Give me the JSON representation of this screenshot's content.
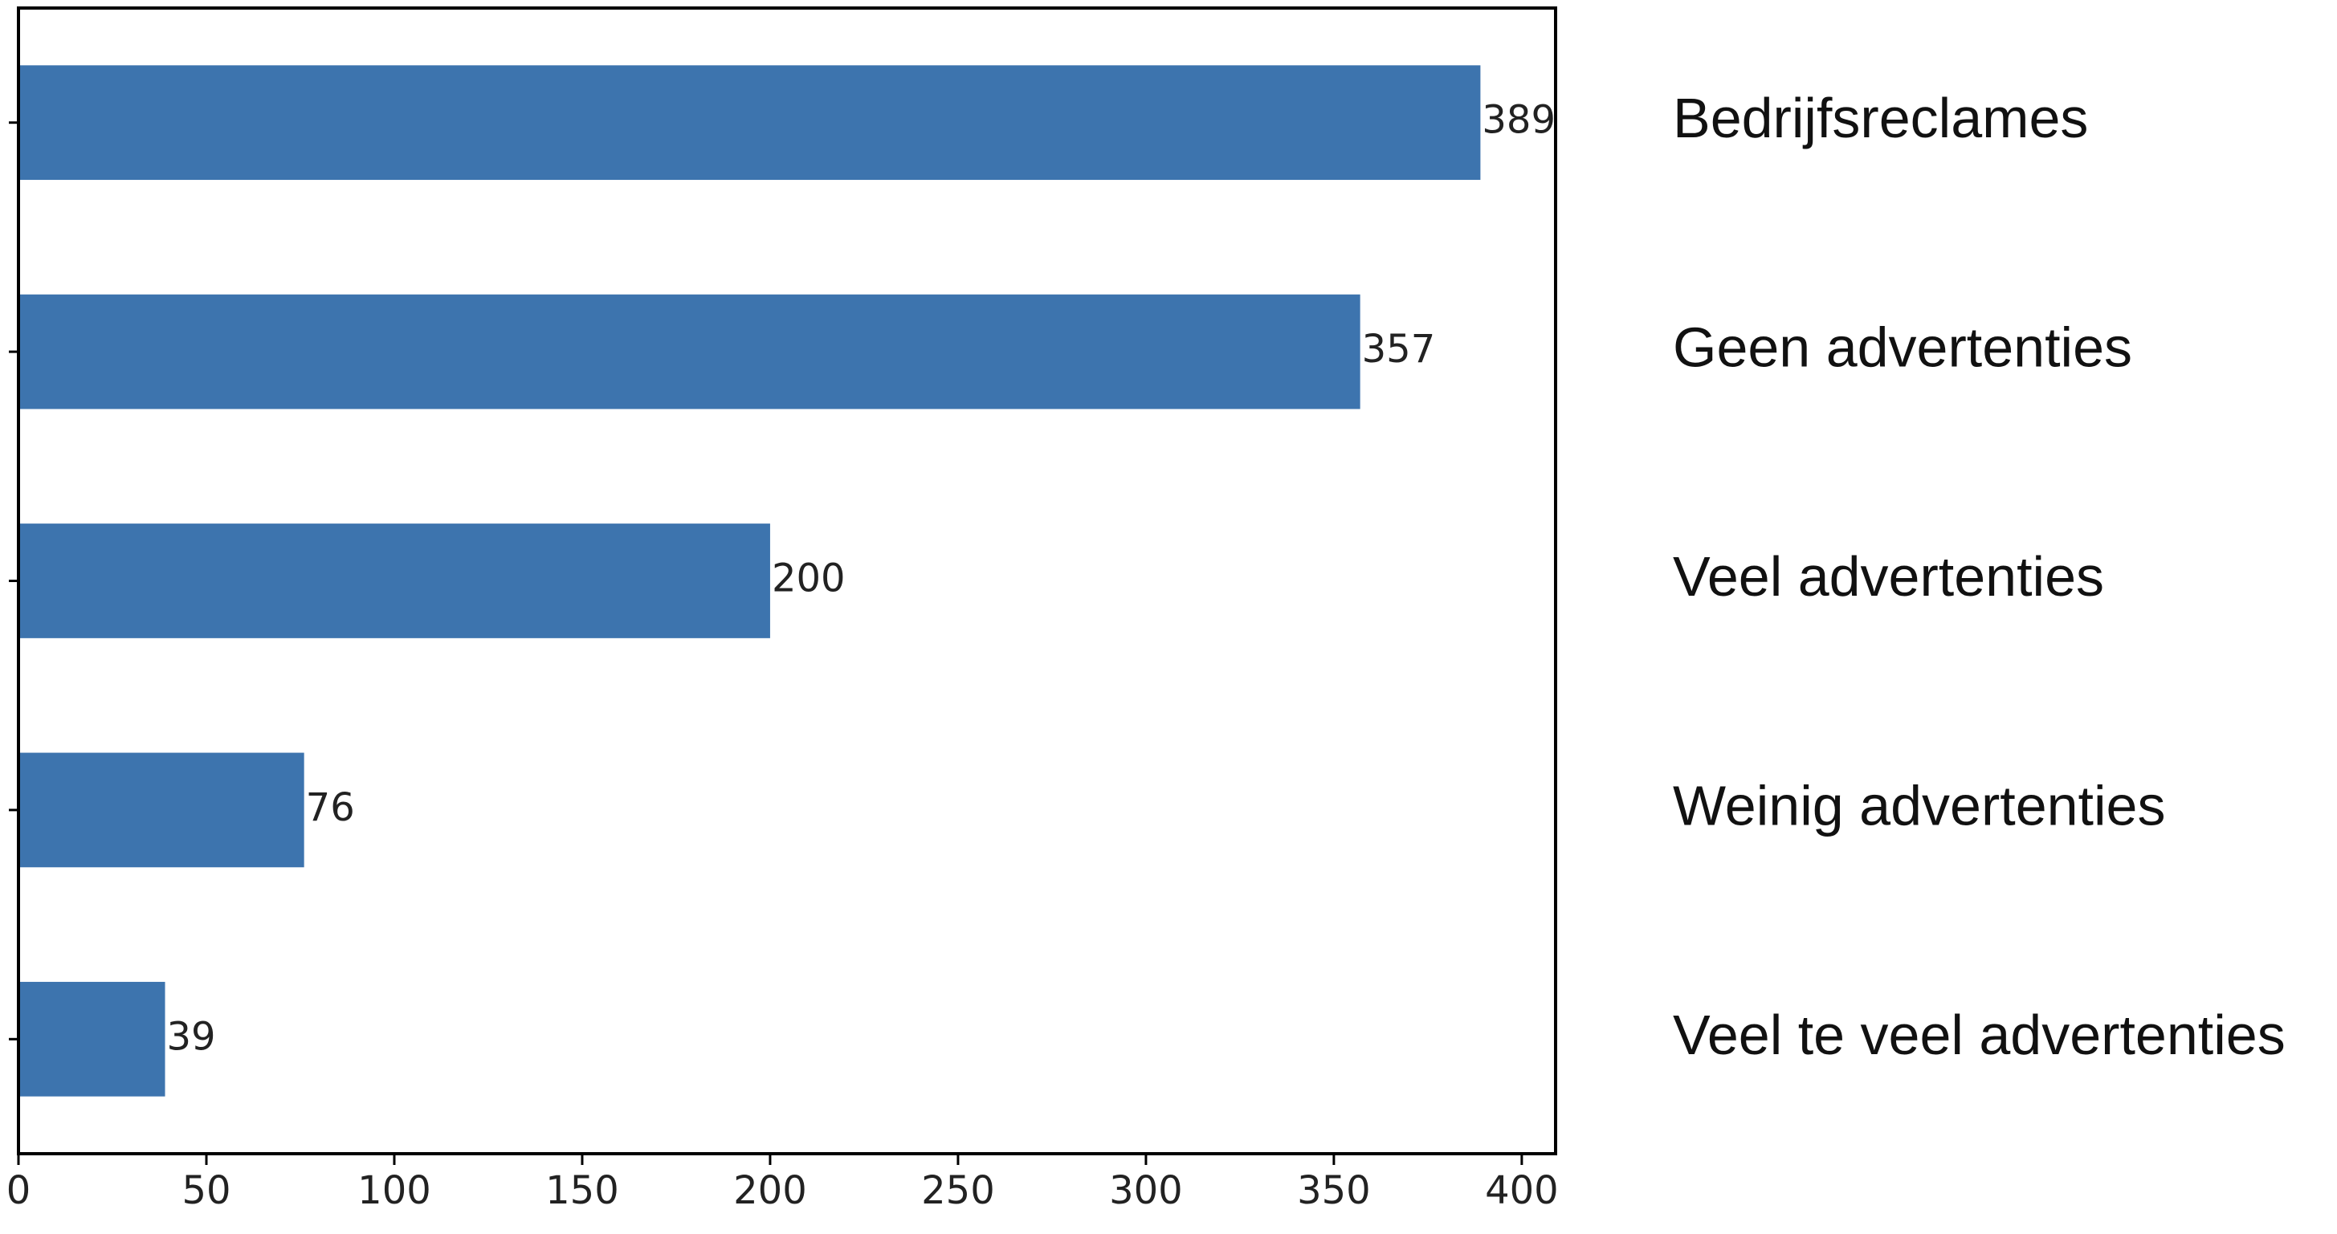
{
  "chart_data": {
    "type": "bar",
    "orientation": "horizontal",
    "categories": [
      "Bedrijfsreclames",
      "Geen advertenties",
      "Veel advertenties",
      "Weinig advertenties",
      "Veel te veel advertenties"
    ],
    "values": [
      389,
      357,
      200,
      76,
      39
    ],
    "data_labels": [
      "389",
      "357",
      "200",
      "76",
      "39"
    ],
    "title": "",
    "xlabel": "",
    "ylabel": "",
    "xlim": [
      0,
      409
    ],
    "xticks": [
      0,
      50,
      100,
      150,
      200,
      250,
      300,
      350,
      400
    ],
    "xtick_labels": [
      "0",
      "50",
      "100",
      "150",
      "200",
      "250",
      "300",
      "350",
      "400"
    ],
    "category_labels_position": "right of plot",
    "grid": false,
    "legend": "none",
    "bar_color": "#3d74ae",
    "axis_color": "#000000",
    "text_color": "#222222"
  }
}
